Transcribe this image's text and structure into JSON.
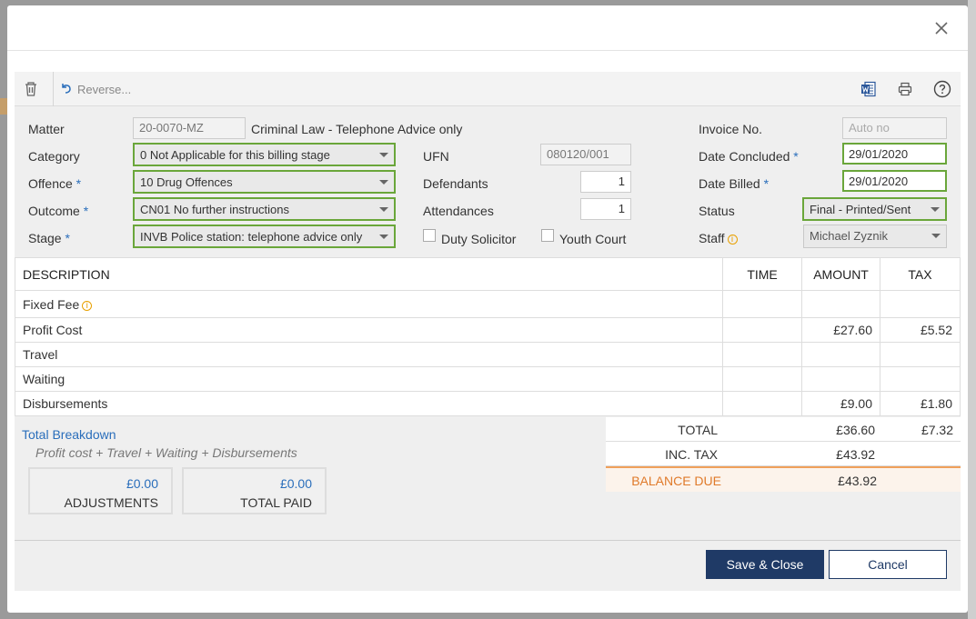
{
  "toolbar": {
    "reverse_label": "Reverse..."
  },
  "form": {
    "matter_label": "Matter",
    "matter_value": "20-0070-MZ",
    "matter_desc": "Criminal Law - Telephone Advice only",
    "category_label": "Category",
    "category_value": "0 Not Applicable for this billing stage",
    "offence_label": "Offence",
    "offence_value": "10 Drug Offences",
    "outcome_label": "Outcome",
    "outcome_value": "CN01 No further instructions",
    "stage_label": "Stage",
    "stage_value": "INVB Police station: telephone advice only",
    "ufn_label": "UFN",
    "ufn_value": "080120/001",
    "defendants_label": "Defendants",
    "defendants_value": "1",
    "attendances_label": "Attendances",
    "attendances_value": "1",
    "duty_solicitor_label": "Duty Solicitor",
    "youth_court_label": "Youth Court",
    "invoice_no_label": "Invoice No.",
    "invoice_no_placeholder": "Auto no",
    "date_concluded_label": "Date Concluded",
    "date_concluded_value": "29/01/2020",
    "date_billed_label": "Date Billed",
    "date_billed_value": "29/01/2020",
    "status_label": "Status",
    "status_value": "Final - Printed/Sent",
    "staff_label": "Staff",
    "staff_value": "Michael Zyznik",
    "required_mark": "*"
  },
  "table": {
    "headers": {
      "description": "DESCRIPTION",
      "time": "TIME",
      "amount": "AMOUNT",
      "tax": "TAX"
    },
    "rows": [
      {
        "description": "Fixed Fee",
        "time": "",
        "amount": "",
        "tax": ""
      },
      {
        "description": "Profit Cost",
        "time": "",
        "amount": "£27.60",
        "tax": "£5.52"
      },
      {
        "description": "Travel",
        "time": "",
        "amount": "",
        "tax": ""
      },
      {
        "description": "Waiting",
        "time": "",
        "amount": "",
        "tax": ""
      },
      {
        "description": "Disbursements",
        "time": "",
        "amount": "£9.00",
        "tax": "£1.80"
      }
    ]
  },
  "breakdown": {
    "link": "Total Breakdown",
    "formula": "Profit cost + Travel + Waiting + Disbursements",
    "adjustments_value": "£0.00",
    "adjustments_label": "ADJUSTMENTS",
    "total_paid_value": "£0.00",
    "total_paid_label": "TOTAL PAID"
  },
  "totals": {
    "total_label": "TOTAL",
    "total_amount": "£36.60",
    "total_tax": "£7.32",
    "inc_tax_label": "INC. TAX",
    "inc_tax_amount": "£43.92",
    "balance_label": "BALANCE DUE",
    "balance_amount": "£43.92"
  },
  "footer": {
    "save_label": "Save & Close",
    "cancel_label": "Cancel"
  },
  "colors": {
    "highlight_border": "#6aa63a",
    "primary": "#1f3a66",
    "link": "#2a6ebb",
    "balance": "#e07a2a"
  }
}
